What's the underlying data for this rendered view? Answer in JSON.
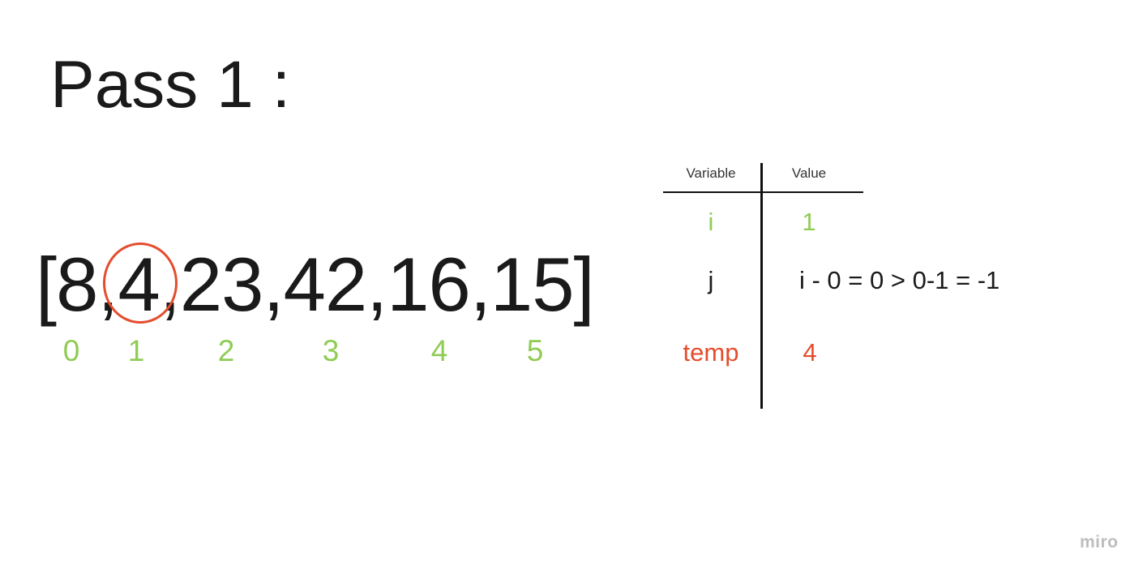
{
  "title": "Pass 1 :",
  "array_text": "[8,4,23,42,16,15]",
  "indices": [
    "0",
    "1",
    "2",
    "3",
    "4",
    "5"
  ],
  "table": {
    "headers": [
      "Variable",
      "Value"
    ],
    "rows": [
      {
        "variable": "i",
        "value": "1"
      },
      {
        "variable": "j",
        "value": "i - 0 = 0 > 0-1 = -1"
      },
      {
        "variable": "temp",
        "value": "4"
      }
    ]
  },
  "logo": "miro",
  "colors": {
    "green": "#8fcc55",
    "red": "#e44d2e",
    "text": "#1a1a1a"
  }
}
